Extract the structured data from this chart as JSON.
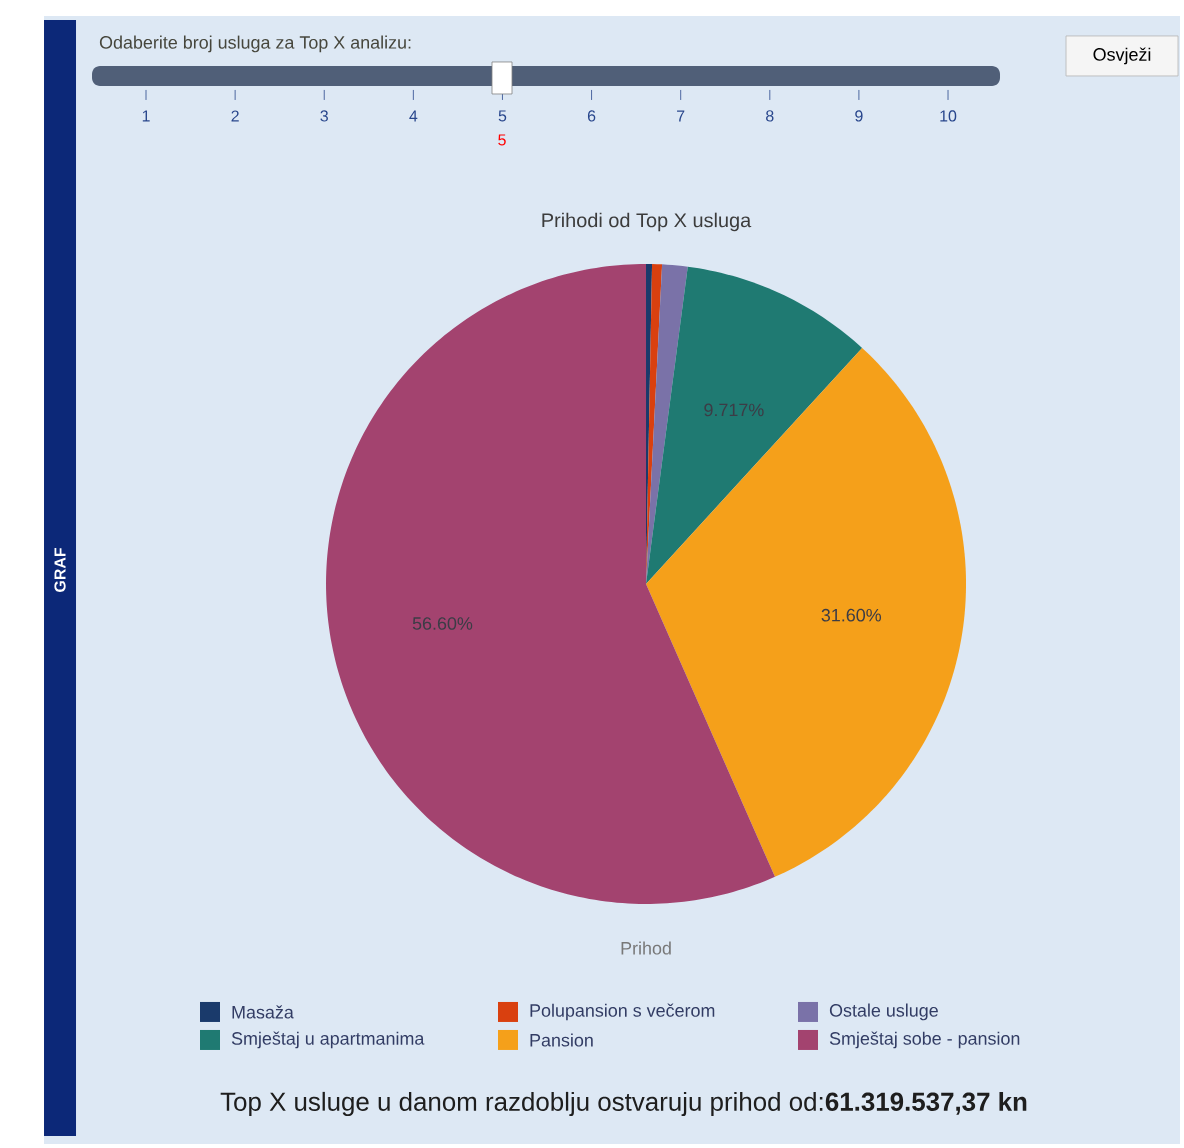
{
  "chart_data": {
    "type": "pie",
    "title": "Prihodi od Top X usluga",
    "xlabel": "Prihod",
    "categories": [
      "Masaža",
      "Polupansion s večerom",
      "Ostale usluge",
      "Smještaj u apartmanima",
      "Pansion",
      "Smještaj sobe - pansion"
    ],
    "values": [
      0.3,
      0.5,
      1.283,
      9.717,
      31.6,
      56.6
    ],
    "colors": [
      "#1a3a6b",
      "#d9400f",
      "#7a72a8",
      "#1f7a72",
      "#f5a01a",
      "#a3436f"
    ],
    "value_labels": [
      null,
      null,
      null,
      "9.717%",
      "31.60%",
      "56.60%"
    ],
    "legend": "bottom",
    "annotations": [
      "Odaberite broj usluga za Top X analizu:",
      "1",
      "2",
      "3",
      "4",
      "5",
      "6",
      "7",
      "8",
      "9",
      "10",
      "5",
      "Osvježi",
      "GRAF",
      "Top X usluge u danom razdoblju ostvaruju prihod od:**61.319.537,37 kn**"
    ]
  }
}
